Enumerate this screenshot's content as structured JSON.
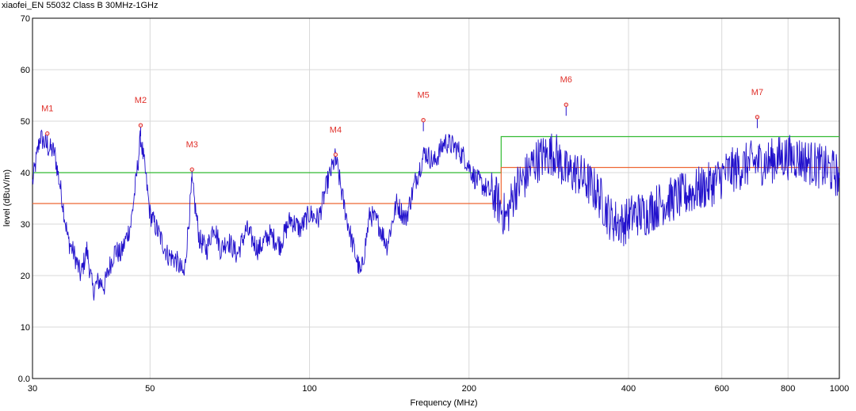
{
  "chart_data": {
    "type": "line",
    "title": "xiaofei_EN 55032 Class B 30MHz-1GHz",
    "xlabel": "Frequency (MHz)",
    "ylabel": "level (dBuV/m)",
    "x_scale": "log",
    "xlim": [
      30,
      1000
    ],
    "ylim": [
      0,
      70
    ],
    "grid": true,
    "x_ticks": [
      30,
      50,
      100,
      200,
      400,
      600,
      800,
      1000
    ],
    "x_tick_labels": [
      "30",
      "50",
      "100",
      "200",
      "400",
      "600",
      "800",
      "1000"
    ],
    "y_ticks": [
      0,
      10,
      20,
      30,
      40,
      50,
      60,
      70
    ],
    "y_tick_labels": [
      "0.0",
      "10",
      "20",
      "30",
      "40",
      "50",
      "60",
      "70"
    ],
    "limit_lines": [
      {
        "color": "#33bb33",
        "points": [
          [
            30,
            40
          ],
          [
            230,
            40
          ],
          [
            230,
            47
          ],
          [
            1000,
            47
          ]
        ]
      },
      {
        "color": "#ee6633",
        "points": [
          [
            30,
            34
          ],
          [
            230,
            34
          ],
          [
            230,
            41
          ],
          [
            1000,
            41
          ]
        ]
      }
    ],
    "series": [
      {
        "color": "#2211cc",
        "x": [
          30,
          31,
          32,
          33,
          34,
          35,
          36,
          37,
          38,
          39,
          40,
          41,
          42,
          43,
          44,
          45,
          46,
          47,
          48,
          49,
          50,
          52,
          54,
          56,
          58,
          60,
          62,
          64,
          66,
          68,
          70,
          73,
          76,
          80,
          84,
          88,
          92,
          96,
          100,
          104,
          108,
          112,
          116,
          120,
          125,
          130,
          135,
          140,
          146,
          152,
          158,
          165,
          172,
          180,
          188,
          196,
          205,
          215,
          225,
          235,
          245,
          255,
          265,
          275,
          290,
          305,
          320,
          335,
          350,
          370,
          390,
          410,
          430,
          460,
          490,
          520,
          550,
          580,
          610,
          650,
          690,
          730,
          780,
          830,
          880,
          930,
          980,
          1000
        ],
        "y": [
          38,
          47,
          45,
          44,
          36,
          27,
          24,
          20,
          25,
          17,
          19,
          18,
          22,
          25,
          24,
          27,
          30,
          38,
          47,
          40,
          32,
          28,
          24,
          23,
          20,
          38,
          27,
          25,
          30,
          25,
          27,
          24,
          29,
          25,
          28,
          26,
          31,
          29,
          32,
          31,
          38,
          43,
          34,
          27,
          20,
          32,
          30,
          26,
          34,
          31,
          38,
          44,
          42,
          46,
          45,
          43,
          39,
          37,
          35,
          31,
          37,
          39,
          42,
          43,
          44,
          40,
          40,
          38,
          36,
          31,
          30,
          32,
          32,
          34,
          35,
          36,
          37,
          38,
          40,
          41,
          42,
          42,
          43,
          43,
          42,
          41,
          40,
          39
        ]
      }
    ],
    "markers": [
      {
        "label": "M1",
        "x": 32,
        "y": 47.6
      },
      {
        "label": "M2",
        "x": 48,
        "y": 49.2
      },
      {
        "label": "M3",
        "x": 60,
        "y": 40.6
      },
      {
        "label": "M4",
        "x": 112,
        "y": 43.5
      },
      {
        "label": "M5",
        "x": 164,
        "y": 50.2
      },
      {
        "label": "M6",
        "x": 305,
        "y": 53.2
      },
      {
        "label": "M7",
        "x": 700,
        "y": 50.8
      }
    ]
  }
}
